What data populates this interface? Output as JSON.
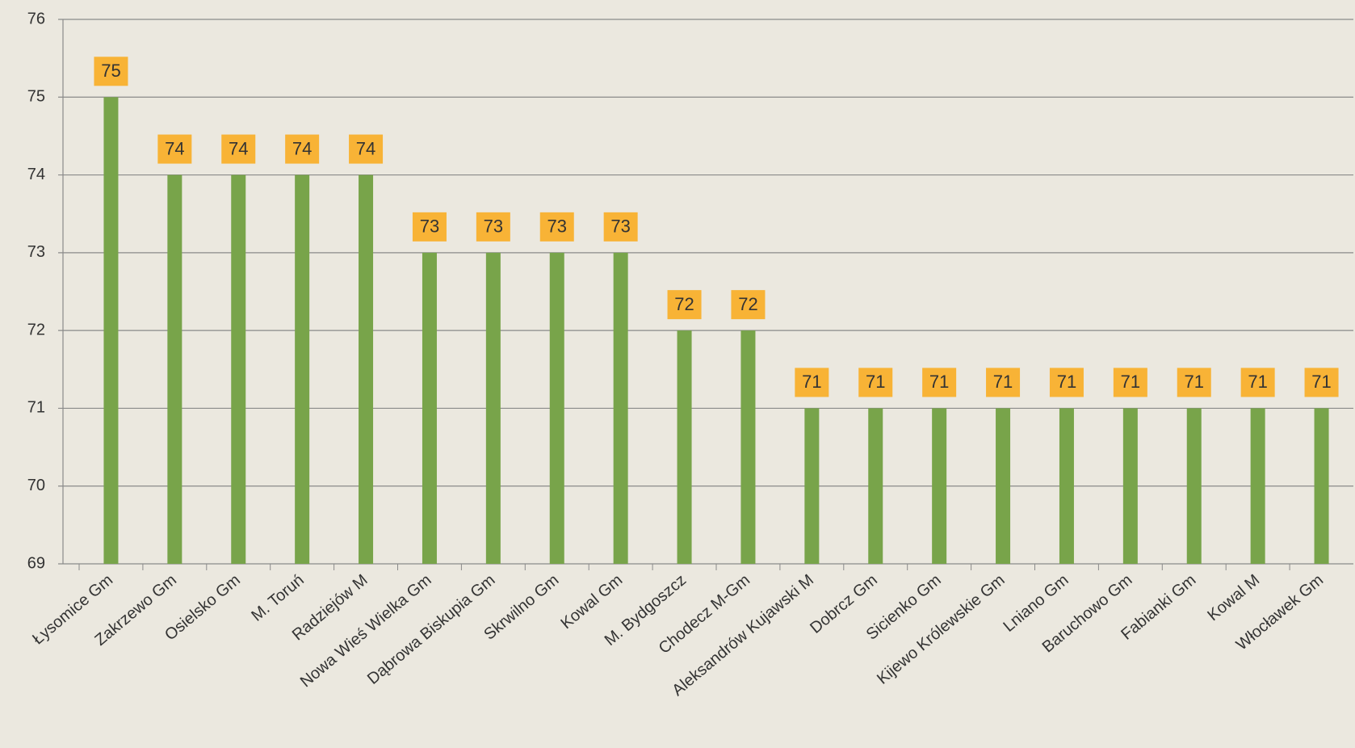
{
  "chart_data": {
    "type": "bar",
    "categories": [
      "Łysomice Gm",
      "Zakrzewo Gm",
      "Osielsko Gm",
      "M. Toruń",
      "Radziejów M",
      "Nowa Wieś Wielka Gm",
      "Dąbrowa Biskupia Gm",
      "Skrwilno Gm",
      "Kowal Gm",
      "M. Bydgoszcz",
      "Chodecz M-Gm",
      "Aleksandrów Kujawski M",
      "Dobrcz Gm",
      "Sicienko Gm",
      "Kijewo Królewskie Gm",
      "Lniano Gm",
      "Baruchowo Gm",
      "Fabianki Gm",
      "Kowal M",
      "Włocławek Gm"
    ],
    "values": [
      75,
      74,
      74,
      74,
      74,
      73,
      73,
      73,
      73,
      72,
      72,
      71,
      71,
      71,
      71,
      71,
      71,
      71,
      71,
      71
    ],
    "color": "#78a44a",
    "label_color": "#f8b336",
    "ylim": [
      69,
      76
    ],
    "yticks": [
      69,
      70,
      71,
      72,
      73,
      74,
      75,
      76
    ],
    "grid": true
  }
}
